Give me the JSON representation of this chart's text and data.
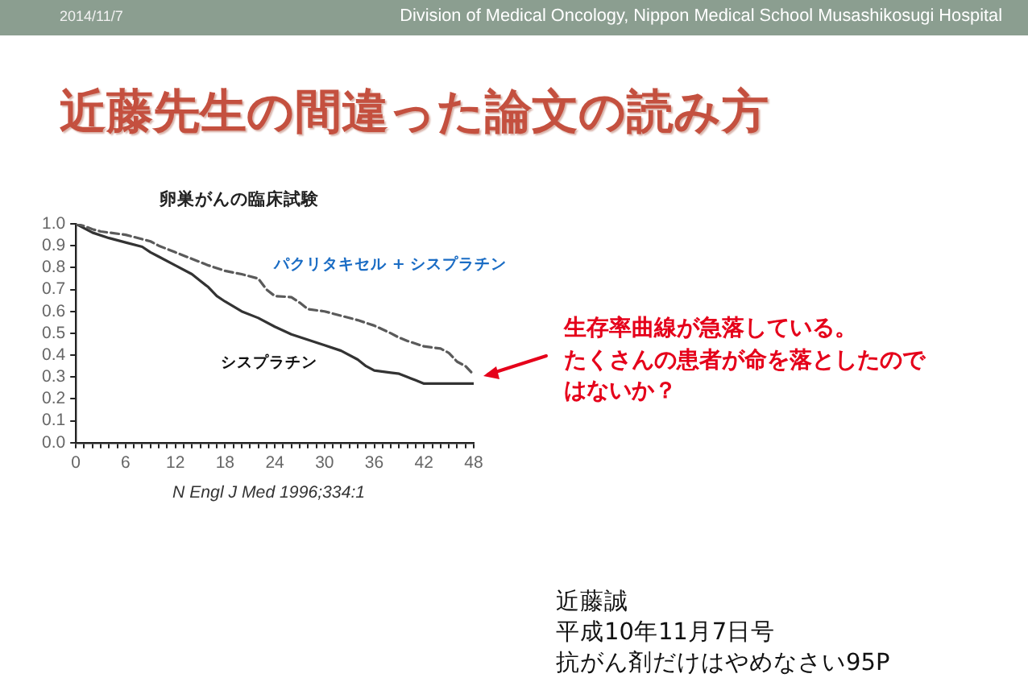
{
  "chart_data": {
    "type": "line",
    "title": "近藤先生の間違った論文の読み方",
    "subtitle": "卵巣がんの臨床試験",
    "annotations": [
      "2014/11/7",
      "Division of Medical Oncology, Nippon Medical School Musashikosugi Hospital",
      "生存率曲線が急落している。",
      "たくさんの患者が命を落としたのではないか？",
      "N Engl J Med 1996;334:1",
      "近藤誠",
      "平成10年11月7日号",
      "抗がん剤だけはやめなさい95P"
    ],
    "series": [
      {
        "name": "パクリタキセル + シスプラチン",
        "color": "#5a5a5a",
        "line_style": "dashed",
        "x": [
          0,
          1,
          2,
          3,
          4,
          6,
          8,
          9,
          10,
          12,
          14,
          16,
          18,
          20,
          22,
          23,
          24,
          26,
          27,
          28,
          30,
          32,
          34,
          36,
          38,
          39,
          40,
          42,
          44,
          45,
          46,
          47,
          48
        ],
        "values": [
          1.0,
          0.99,
          0.975,
          0.965,
          0.96,
          0.95,
          0.93,
          0.92,
          0.9,
          0.87,
          0.84,
          0.81,
          0.785,
          0.77,
          0.75,
          0.7,
          0.67,
          0.665,
          0.64,
          0.61,
          0.6,
          0.58,
          0.56,
          0.535,
          0.5,
          0.48,
          0.465,
          0.44,
          0.43,
          0.41,
          0.37,
          0.35,
          0.31
        ]
      },
      {
        "name": "シスプラチン",
        "color": "#333333",
        "line_style": "solid",
        "x": [
          0,
          2,
          4,
          6,
          8,
          9,
          10,
          12,
          14,
          15,
          16,
          17,
          18,
          20,
          22,
          24,
          26,
          28,
          30,
          32,
          34,
          35,
          36,
          38,
          39,
          40,
          41,
          42,
          48
        ],
        "values": [
          1.0,
          0.96,
          0.935,
          0.915,
          0.895,
          0.87,
          0.85,
          0.81,
          0.77,
          0.74,
          0.71,
          0.67,
          0.645,
          0.6,
          0.57,
          0.53,
          0.495,
          0.47,
          0.445,
          0.42,
          0.38,
          0.35,
          0.33,
          0.32,
          0.315,
          0.3,
          0.285,
          0.27,
          0.27
        ]
      }
    ],
    "xlim": [
      0,
      48
    ],
    "xticks": [
      0,
      {
        "value": 1,
        "label": null
      },
      {
        "value": 2,
        "label": null
      },
      {
        "value": 3,
        "label": null
      },
      {
        "value": 4,
        "label": null
      },
      {
        "value": 5,
        "label": null
      },
      6,
      {
        "value": 7,
        "label": null
      },
      {
        "value": 8,
        "label": null
      },
      {
        "value": 9,
        "label": null
      },
      {
        "value": 10,
        "label": null
      },
      {
        "value": 11,
        "label": null
      },
      12,
      {
        "value": 13,
        "label": null
      },
      {
        "value": 14,
        "label": null
      },
      {
        "value": 15,
        "label": null
      },
      {
        "value": 16,
        "label": null
      },
      {
        "value": 17,
        "label": null
      },
      18,
      {
        "value": 19,
        "label": null
      },
      {
        "value": 20,
        "label": null
      },
      {
        "value": 21,
        "label": null
      },
      {
        "value": 22,
        "label": null
      },
      {
        "value": 23,
        "label": null
      },
      24,
      {
        "value": 25,
        "label": null
      },
      {
        "value": 26,
        "label": null
      },
      {
        "value": 27,
        "label": null
      },
      {
        "value": 28,
        "label": null
      },
      {
        "value": 29,
        "label": null
      },
      30,
      {
        "value": 31,
        "label": null
      },
      {
        "value": 32,
        "label": null
      },
      {
        "value": 33,
        "label": null
      },
      {
        "value": 34,
        "label": null
      },
      {
        "value": 35,
        "label": null
      },
      36,
      {
        "value": 37,
        "label": null
      },
      {
        "value": 38,
        "label": null
      },
      {
        "value": 39,
        "label": null
      },
      {
        "value": 40,
        "label": null
      },
      {
        "value": 41,
        "label": null
      },
      42,
      {
        "value": 43,
        "label": null
      },
      {
        "value": 44,
        "label": null
      },
      {
        "value": 45,
        "label": null
      },
      {
        "value": 46,
        "label": null
      },
      {
        "value": 47,
        "label": null
      },
      48
    ],
    "ylim": [
      0,
      1
    ],
    "yticks": [
      {
        "value": 0,
        "label": "0.0"
      },
      0.1,
      0.2,
      0.3,
      0.4,
      0.5,
      0.6,
      0.7,
      0.8,
      0.9,
      {
        "value": 1,
        "label": "1.0"
      }
    ],
    "grid": false,
    "legend": false,
    "marker": "none"
  }
}
